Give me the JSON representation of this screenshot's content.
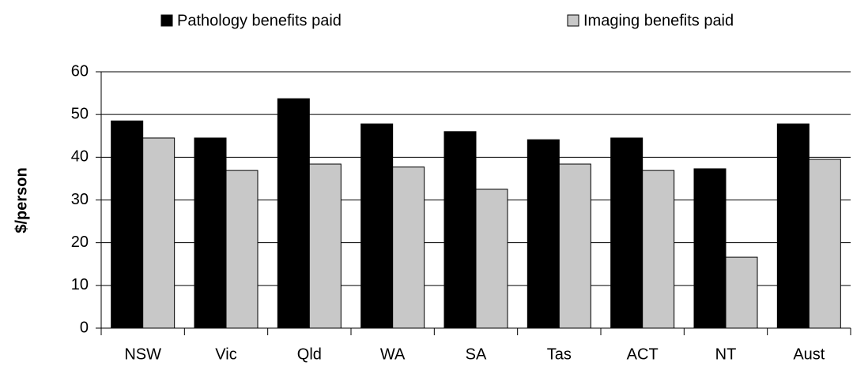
{
  "chart_data": {
    "type": "bar",
    "y_label": "$/person",
    "categories": [
      "NSW",
      "Vic",
      "Qld",
      "WA",
      "SA",
      "Tas",
      "ACT",
      "NT",
      "Aust"
    ],
    "series": [
      {
        "name": "Pathology benefits paid",
        "color": "#000000",
        "values": [
          48.5,
          44.5,
          53.7,
          47.8,
          46,
          44.1,
          44.5,
          37.3,
          47.8
        ]
      },
      {
        "name": "Imaging benefits paid",
        "color": "#c8c8c8",
        "values": [
          44.5,
          36.9,
          38.4,
          37.7,
          32.5,
          38.4,
          36.9,
          16.6,
          39.5
        ]
      }
    ],
    "ylim": [
      0,
      60
    ],
    "yticks": [
      0,
      10,
      20,
      30,
      40,
      50,
      60
    ],
    "grid": true,
    "legend": "top"
  }
}
